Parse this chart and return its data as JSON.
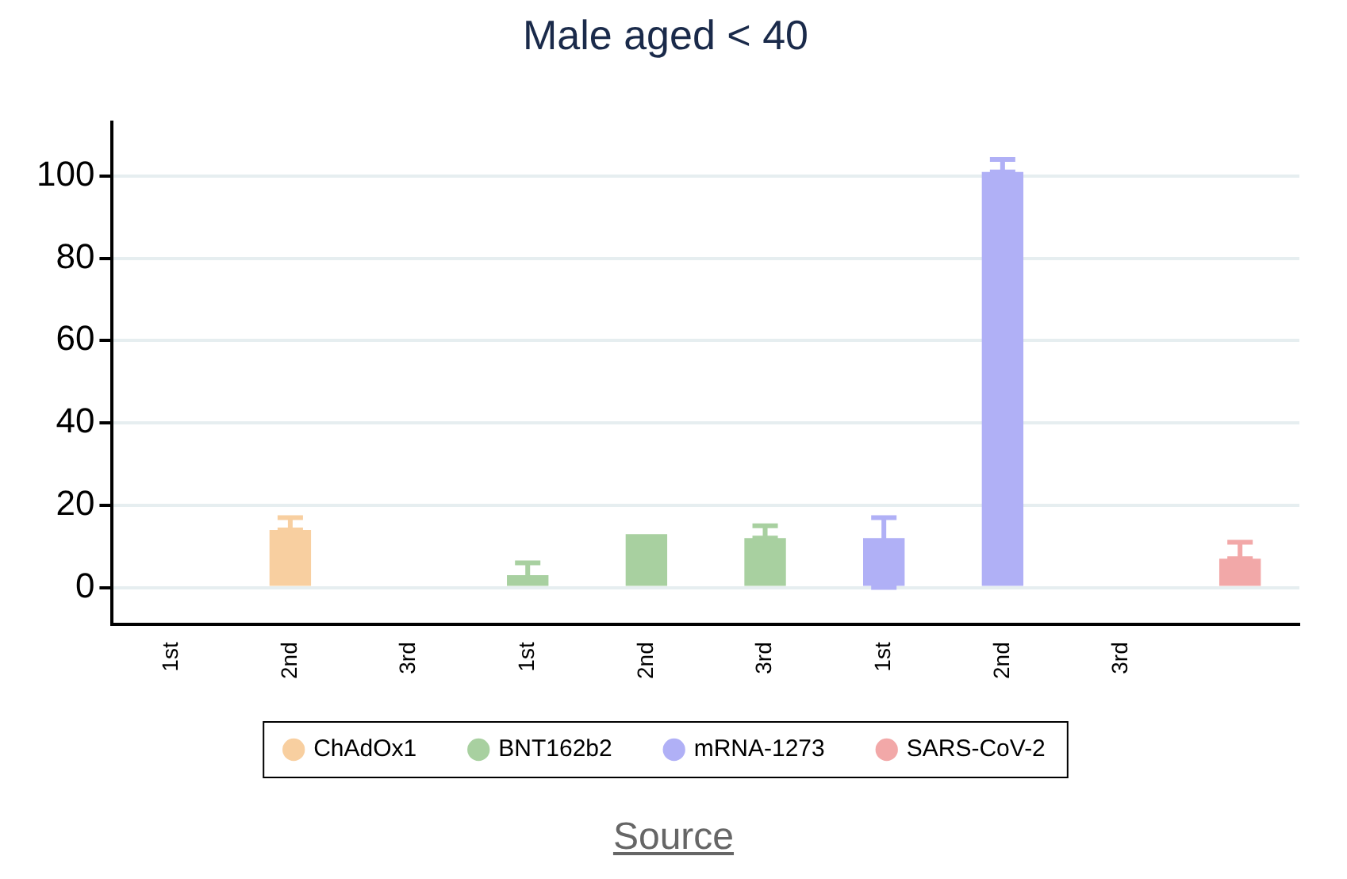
{
  "chart_data": {
    "type": "bar",
    "title": "Male aged < 40",
    "categories": [
      "1st",
      "2nd",
      "3rd",
      "1st",
      "2nd",
      "3rd",
      "1st",
      "2nd",
      "3rd",
      null
    ],
    "series": [
      {
        "name": "ChAdOx1",
        "color": "#f8cfa0",
        "values": [
          null,
          14,
          null,
          null,
          null,
          null,
          null,
          null,
          null,
          null
        ],
        "errors": [
          null,
          [
            14,
            17
          ],
          null,
          null,
          null,
          null,
          null,
          null,
          null,
          null
        ]
      },
      {
        "name": "BNT162b2",
        "color": "#a8d0a0",
        "values": [
          null,
          null,
          null,
          3,
          13,
          12,
          null,
          null,
          null,
          null
        ],
        "errors": [
          null,
          null,
          null,
          [
            2,
            6
          ],
          null,
          [
            12,
            15
          ],
          null,
          null,
          null,
          null
        ]
      },
      {
        "name": "mRNA-1273",
        "color": "#b0b0f6",
        "values": [
          null,
          null,
          null,
          null,
          null,
          null,
          12,
          101,
          null,
          null
        ],
        "errors": [
          null,
          null,
          null,
          null,
          null,
          null,
          [
            0,
            17
          ],
          [
            101,
            104
          ],
          null,
          null
        ]
      },
      {
        "name": "SARS-CoV-2",
        "color": "#f2a8a8",
        "values": [
          null,
          null,
          null,
          null,
          null,
          null,
          null,
          null,
          null,
          7
        ],
        "errors": [
          null,
          null,
          null,
          null,
          null,
          null,
          null,
          null,
          null,
          [
            7,
            11
          ]
        ]
      }
    ],
    "ylim": [
      -9,
      113
    ],
    "yticks": [
      0,
      20,
      40,
      60,
      80,
      100
    ],
    "grid": "y",
    "legend": "bottom",
    "annotations": [
      "Source"
    ]
  }
}
